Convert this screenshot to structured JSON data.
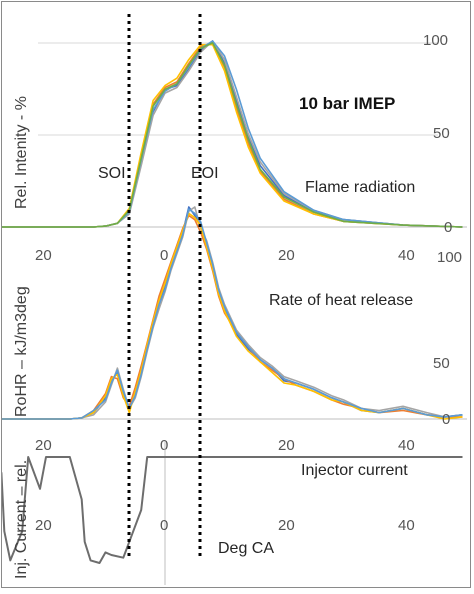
{
  "colors": {
    "series": [
      "#4472c4",
      "#ed7d31",
      "#a5a5a5",
      "#ffc000",
      "#5b9bd5",
      "#70ad47",
      "#264478",
      "#9e480e",
      "#636363",
      "#997300",
      "#255e91",
      "#43682b",
      "#698ed0",
      "#f1975a"
    ],
    "injector": "#6d6d6d",
    "axis": "#bfbfbf",
    "marker": "#000000"
  },
  "labels": {
    "soi": "SOI",
    "eoi": "EOI",
    "deg_ca": "Deg CA",
    "imep": "10 bar IMEP"
  },
  "chart_data": [
    {
      "type": "line",
      "title": "Flame radiation",
      "ylabel": "Rel. Intenity - %",
      "xlim": [
        -35,
        50
      ],
      "ylim": [
        0,
        100
      ],
      "x_ticks": [
        "20",
        "0",
        "20",
        "40"
      ],
      "y_ticks": [
        "0",
        "50",
        "100"
      ],
      "annotation": "10 bar IMEP",
      "x": [
        -35,
        -12,
        -10,
        -8,
        -6,
        -4,
        -2,
        0,
        2,
        4,
        6,
        8,
        10,
        12,
        14,
        16,
        20,
        25,
        30,
        40,
        50
      ],
      "series": [
        {
          "values": [
            0,
            0,
            0.5,
            2,
            8,
            35,
            62,
            74,
            76,
            85,
            95,
            100,
            88,
            68,
            48,
            33,
            17,
            8,
            4,
            1,
            0
          ]
        },
        {
          "values": [
            0,
            0,
            0.5,
            2,
            9,
            38,
            66,
            75,
            78,
            88,
            97,
            99,
            86,
            64,
            45,
            30,
            15,
            7,
            3,
            1,
            0
          ]
        },
        {
          "values": [
            0,
            0,
            0.5,
            2,
            7,
            33,
            60,
            72,
            75,
            84,
            94,
            100,
            90,
            70,
            50,
            35,
            18,
            9,
            4,
            1,
            0
          ]
        },
        {
          "values": [
            0,
            0,
            0.5,
            2,
            10,
            40,
            68,
            76,
            80,
            90,
            98,
            98,
            84,
            62,
            43,
            29,
            14,
            7,
            3,
            1,
            0
          ]
        },
        {
          "values": [
            0,
            0,
            0.5,
            2,
            8,
            36,
            63,
            73,
            77,
            86,
            96,
            100,
            92,
            74,
            53,
            37,
            19,
            9,
            4,
            1,
            0
          ]
        },
        {
          "values": [
            0,
            0,
            0.5,
            2,
            9,
            37,
            65,
            74,
            77,
            87,
            96,
            99,
            87,
            66,
            47,
            31,
            16,
            8,
            3,
            1,
            0
          ]
        }
      ]
    },
    {
      "type": "line",
      "title": "Rate of heat release",
      "ylabel": "RoHR – kJ/m3deg",
      "xlim": [
        -35,
        50
      ],
      "ylim": [
        0,
        100
      ],
      "x_ticks": [
        "20",
        "0",
        "20",
        "40"
      ],
      "y_ticks": [
        "0",
        "50",
        "100"
      ],
      "x": [
        -35,
        -16,
        -14,
        -12,
        -10,
        -9,
        -8,
        -7,
        -6,
        -5,
        -4,
        -3,
        -2,
        -1,
        0,
        1,
        2,
        3,
        4,
        5,
        6,
        7,
        8,
        9,
        10,
        12,
        14,
        16,
        18,
        20,
        22,
        25,
        28,
        30,
        33,
        36,
        40,
        44,
        47,
        50
      ],
      "series": [
        {
          "values": [
            0,
            0,
            0.5,
            3,
            10,
            18,
            22,
            12,
            4,
            12,
            22,
            34,
            45,
            55,
            62,
            72,
            80,
            88,
            100,
            96,
            92,
            82,
            72,
            60,
            52,
            40,
            33,
            28,
            24,
            18,
            17,
            14,
            10,
            8,
            4,
            3,
            5,
            2,
            1,
            2
          ]
        },
        {
          "values": [
            0,
            0,
            0.5,
            4,
            12,
            20,
            19,
            10,
            6,
            15,
            25,
            36,
            47,
            58,
            66,
            74,
            82,
            90,
            96,
            94,
            88,
            80,
            70,
            58,
            50,
            41,
            34,
            27,
            23,
            19,
            16,
            13,
            9,
            7,
            5,
            3,
            4,
            2,
            1,
            1
          ]
        },
        {
          "values": [
            0,
            0,
            0.5,
            2,
            8,
            16,
            24,
            14,
            5,
            10,
            20,
            32,
            43,
            52,
            60,
            70,
            78,
            86,
            98,
            100,
            90,
            84,
            74,
            62,
            54,
            42,
            35,
            29,
            25,
            20,
            18,
            15,
            11,
            9,
            5,
            4,
            6,
            3,
            1,
            2
          ]
        },
        {
          "values": [
            0,
            0,
            0.5,
            3,
            11,
            19,
            21,
            11,
            3,
            13,
            23,
            35,
            46,
            56,
            64,
            73,
            81,
            89,
            97,
            95,
            91,
            81,
            71,
            59,
            51,
            39,
            32,
            27,
            22,
            17,
            16,
            13,
            9,
            8,
            4,
            3,
            5,
            2,
            0,
            1
          ]
        },
        {
          "values": [
            0,
            0,
            0.5,
            4,
            9,
            17,
            23,
            13,
            5,
            11,
            21,
            33,
            44,
            54,
            61,
            71,
            79,
            87,
            99,
            97,
            93,
            83,
            73,
            61,
            53,
            41,
            34,
            28,
            24,
            19,
            17,
            14,
            10,
            8,
            5,
            3,
            5,
            2,
            1,
            2
          ]
        }
      ]
    },
    {
      "type": "line",
      "title": "Injector current",
      "ylabel": "Inj. Current – rel.",
      "xlabel": "Deg CA",
      "xlim": [
        -35,
        50
      ],
      "x_ticks": [
        "20",
        "0",
        "20",
        "40"
      ],
      "x": [
        -35,
        -29,
        -27.5,
        -27,
        -26,
        -24,
        -23,
        -21,
        -20,
        -16,
        -14,
        -13.5,
        -12.5,
        -11,
        -10,
        -9,
        -7,
        -6,
        -4,
        -3,
        50
      ],
      "values": [
        1,
        1,
        0.7,
        -0.4,
        -0.95,
        -0.4,
        1,
        0.4,
        1,
        1,
        0.2,
        -0.6,
        -0.95,
        -1,
        -0.8,
        -0.85,
        -0.9,
        -0.6,
        0,
        1,
        1
      ]
    }
  ]
}
